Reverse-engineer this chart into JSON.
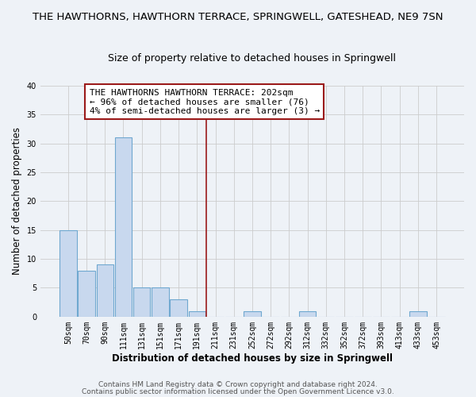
{
  "title": "THE HAWTHORNS, HAWTHORN TERRACE, SPRINGWELL, GATESHEAD, NE9 7SN",
  "subtitle": "Size of property relative to detached houses in Springwell",
  "xlabel": "Distribution of detached houses by size in Springwell",
  "ylabel": "Number of detached properties",
  "bar_labels": [
    "50sqm",
    "70sqm",
    "90sqm",
    "111sqm",
    "131sqm",
    "151sqm",
    "171sqm",
    "191sqm",
    "211sqm",
    "231sqm",
    "252sqm",
    "272sqm",
    "292sqm",
    "312sqm",
    "332sqm",
    "352sqm",
    "372sqm",
    "393sqm",
    "413sqm",
    "433sqm",
    "453sqm"
  ],
  "bar_values": [
    15,
    8,
    9,
    31,
    5,
    5,
    3,
    1,
    0,
    0,
    1,
    0,
    0,
    1,
    0,
    0,
    0,
    0,
    0,
    1,
    0
  ],
  "bar_color": "#c8d8ee",
  "bar_edge_color": "#6fa8d0",
  "vline_x_index": 7.5,
  "vline_color": "#9b1a1a",
  "annotation_box_text": "THE HAWTHORNS HAWTHORN TERRACE: 202sqm\n← 96% of detached houses are smaller (76)\n4% of semi-detached houses are larger (3) →",
  "annotation_box_edge_color": "#9b1a1a",
  "annotation_box_fill": "white",
  "ylim": [
    0,
    40
  ],
  "yticks": [
    0,
    5,
    10,
    15,
    20,
    25,
    30,
    35,
    40
  ],
  "grid_color": "#cccccc",
  "bg_color": "#eef2f7",
  "plot_bg_color": "#eef2f7",
  "footer1": "Contains HM Land Registry data © Crown copyright and database right 2024.",
  "footer2": "Contains public sector information licensed under the Open Government Licence v3.0.",
  "title_fontsize": 9.5,
  "subtitle_fontsize": 9,
  "axis_label_fontsize": 8.5,
  "tick_fontsize": 7,
  "annotation_fontsize": 8,
  "footer_fontsize": 6.5
}
